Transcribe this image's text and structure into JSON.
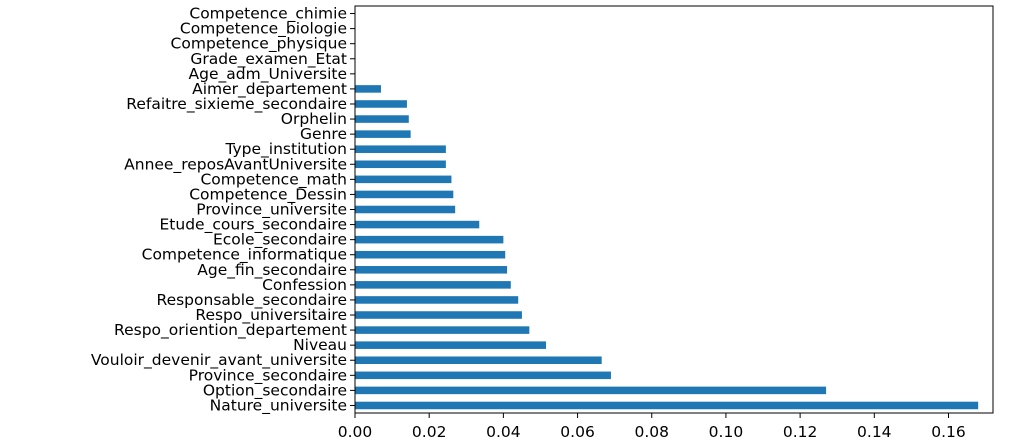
{
  "chart_data": {
    "type": "bar",
    "orientation": "horizontal",
    "categories": [
      "Nature_universite",
      "Option_secondaire",
      "Province_secondaire",
      "Vouloir_devenir_avant_universite",
      "Niveau",
      "Respo_oriention_departement",
      "Respo_universitaire",
      "Responsable_secondaire",
      "Confession",
      "Age_fin_secondaire",
      "Competence_informatique",
      "Ecole_secondaire",
      "Etude_cours_secondaire",
      "Province_universite",
      "Competence_Dessin",
      "Competence_math",
      "Annee_reposAvantUniversite",
      "Type_institution",
      "Genre",
      "Orphelin",
      "Refaitre_sixieme_secondaire",
      "Aimer_departement",
      "Age_adm_Universite",
      "Grade_examen_Etat",
      "Competence_physique",
      "Competence_biologie",
      "Competence_chimie"
    ],
    "values": [
      0.168,
      0.127,
      0.069,
      0.0665,
      0.0515,
      0.047,
      0.045,
      0.044,
      0.042,
      0.041,
      0.0405,
      0.04,
      0.0335,
      0.027,
      0.0265,
      0.026,
      0.0245,
      0.0245,
      0.015,
      0.0145,
      0.014,
      0.007,
      0.0,
      0.0,
      0.0,
      0.0,
      0.0
    ],
    "xlim": [
      0.0,
      0.172
    ],
    "xticks": [
      "0.00",
      "0.02",
      "0.04",
      "0.06",
      "0.08",
      "0.10",
      "0.12",
      "0.14",
      "0.16"
    ],
    "xtick_values": [
      0.0,
      0.02,
      0.04,
      0.06,
      0.08,
      0.1,
      0.12,
      0.14,
      0.16
    ],
    "bar_color": "#1f77b4",
    "grid": false,
    "title": "",
    "xlabel": "",
    "ylabel": ""
  }
}
